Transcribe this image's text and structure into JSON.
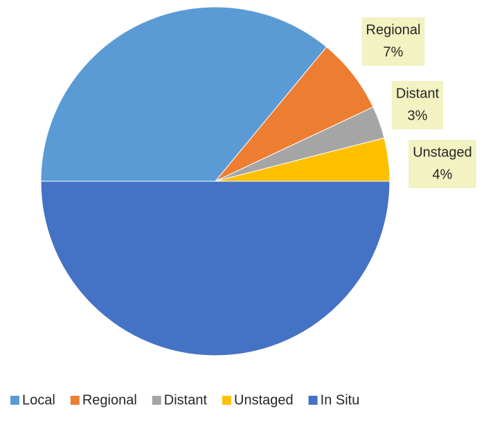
{
  "chart_data": {
    "type": "pie",
    "categories": [
      "Local",
      "Regional",
      "Distant",
      "Unstaged",
      "In Situ"
    ],
    "values": [
      36,
      7,
      3,
      4,
      50
    ],
    "value_labels": [
      "36%",
      "7%",
      "3%",
      "4%",
      "50%"
    ],
    "colors": [
      "#5b9bd5",
      "#ed7d31",
      "#a5a5a5",
      "#ffc000",
      "#4472c4"
    ],
    "legend": "bottom"
  }
}
